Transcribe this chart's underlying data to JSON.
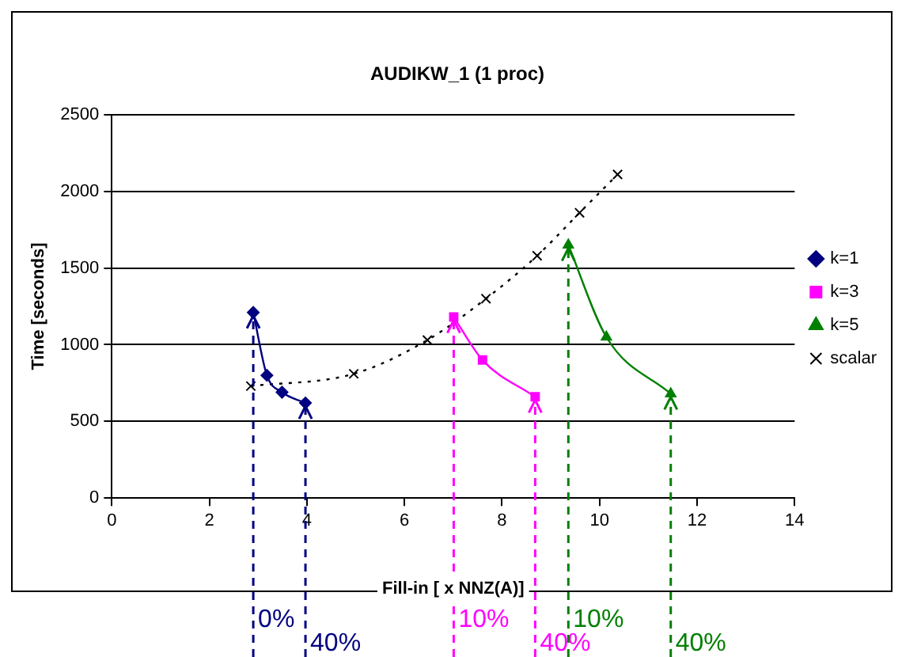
{
  "chart_data": {
    "type": "line",
    "title": "AUDIKW_1 (1 proc)",
    "xlabel": "Fill-in [ x NNZ(A)]",
    "ylabel": "Time [seconds]",
    "xlim": [
      0,
      14
    ],
    "xticks": [
      0,
      2,
      4,
      6,
      8,
      10,
      12,
      14
    ],
    "ylim": [
      0,
      2500
    ],
    "yticks": [
      0,
      500,
      1000,
      1500,
      2000,
      2500
    ],
    "grid": "y",
    "legend": "right",
    "series": [
      {
        "name": "k=1",
        "color": "#000080",
        "marker": "diamond",
        "line_style": "solid",
        "x": [
          2.9,
          3.18,
          3.49,
          3.97
        ],
        "values": [
          1210,
          800,
          690,
          620
        ]
      },
      {
        "name": "k=3",
        "color": "#ff00ff",
        "marker": "square",
        "line_style": "solid",
        "x": [
          7.01,
          7.6,
          8.68
        ],
        "values": [
          1180,
          900,
          660
        ]
      },
      {
        "name": "k=5",
        "color": "#008000",
        "marker": "triangle",
        "line_style": "solid",
        "x": [
          9.36,
          10.14,
          11.46
        ],
        "values": [
          1650,
          1050,
          680
        ]
      },
      {
        "name": "scalar",
        "color": "#000000",
        "marker": "cross",
        "line_style": "dotted",
        "x": [
          2.85,
          4.96,
          6.47,
          7.67,
          8.72,
          9.59,
          10.37
        ],
        "values": [
          730,
          810,
          1030,
          1300,
          1580,
          1860,
          2110
        ]
      }
    ],
    "annotations": [
      {
        "text": "0%",
        "x": 2.9,
        "y": 1210
      },
      {
        "text": "40%",
        "x": 3.97,
        "y": 620
      },
      {
        "text": "10%",
        "x": 7.01,
        "y": 1180
      },
      {
        "text": "40%",
        "x": 8.68,
        "y": 660
      },
      {
        "text": "10%",
        "x": 9.36,
        "y": 1650
      },
      {
        "text": "40%",
        "x": 11.46,
        "y": 680
      }
    ]
  }
}
